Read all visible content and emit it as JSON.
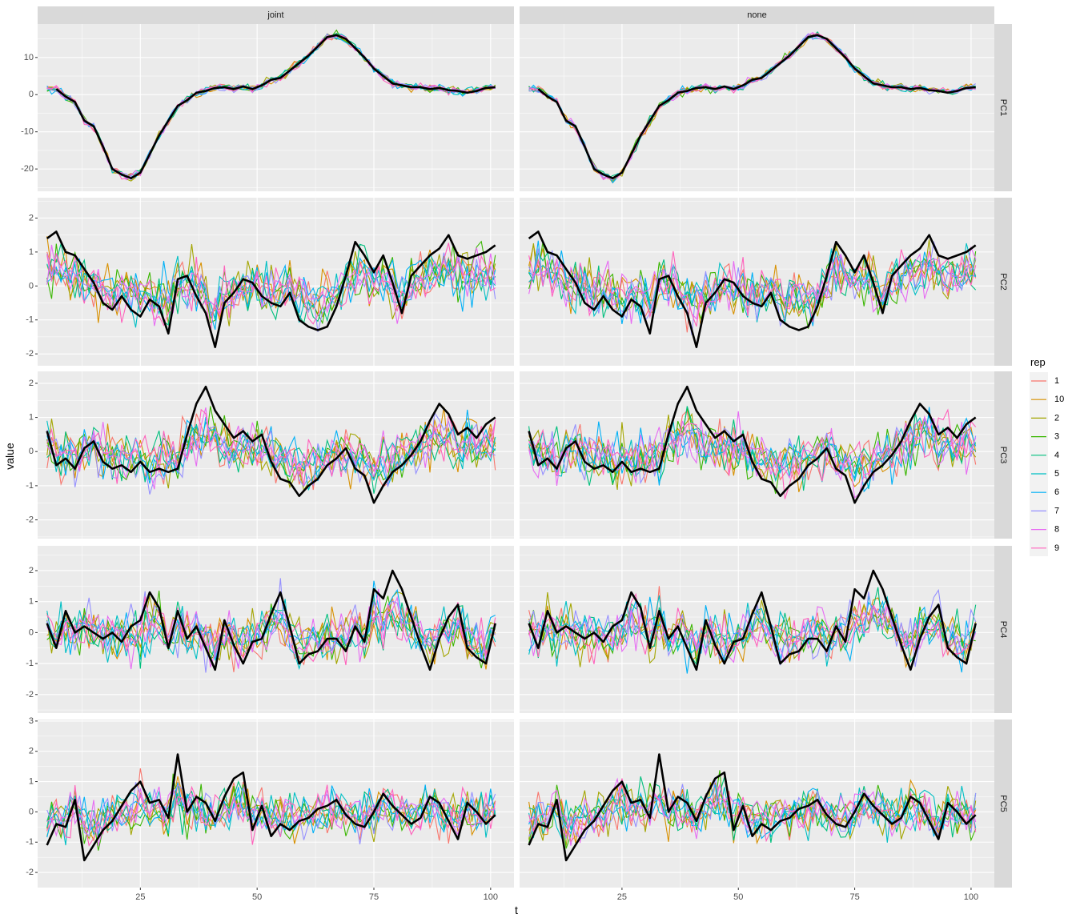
{
  "chart_data": {
    "type": "line",
    "facet_cols": [
      "joint",
      "none"
    ],
    "facet_rows": [
      "PC1",
      "PC2",
      "PC3",
      "PC4",
      "PC5"
    ],
    "xlabel": "t",
    "ylabel": "value",
    "xlim": [
      3,
      105
    ],
    "xticks": [
      25,
      50,
      75,
      100
    ],
    "rows": [
      {
        "name": "PC1",
        "ylim": [
          -26,
          19
        ],
        "yticks": [
          -20,
          -10,
          0,
          10
        ],
        "amp": 0.9,
        "truth": {
          "x": [
            7,
            9,
            11,
            13,
            15,
            17,
            19,
            21,
            23,
            25,
            27,
            29,
            31,
            33,
            35,
            37,
            39,
            41,
            43,
            45,
            47,
            49,
            51,
            53,
            55,
            57,
            59,
            61,
            63,
            65,
            67,
            69,
            71,
            73,
            75,
            77,
            79,
            81,
            83,
            85,
            87,
            89,
            91,
            93,
            95,
            97,
            99,
            101
          ],
          "y": [
            1.5,
            -0.5,
            -2,
            -7,
            -8.5,
            -14,
            -20,
            -21.5,
            -22.5,
            -21,
            -16,
            -11,
            -7,
            -3,
            -1.5,
            0.5,
            1,
            1.8,
            2,
            1.5,
            2.2,
            1.5,
            2.5,
            4,
            4.5,
            6.5,
            8.5,
            10.5,
            13,
            15.5,
            16,
            15,
            12.5,
            10,
            7,
            5,
            3,
            2.5,
            2,
            2,
            1.5,
            1.8,
            1.2,
            1,
            0.5,
            1,
            1.8,
            2
          ]
        }
      },
      {
        "name": "PC2",
        "ylim": [
          -2.35,
          2.6
        ],
        "yticks": [
          -2,
          -1,
          0,
          1,
          2
        ],
        "amp": 0.65,
        "truth": {
          "x": [
            5,
            7,
            9,
            11,
            13,
            15,
            17,
            19,
            21,
            23,
            25,
            27,
            29,
            31,
            33,
            35,
            37,
            39,
            41,
            43,
            45,
            47,
            49,
            51,
            53,
            55,
            57,
            59,
            61,
            63,
            65,
            67,
            69,
            71,
            73,
            75,
            77,
            79,
            81,
            83,
            85,
            87,
            89,
            91,
            93,
            95,
            97,
            99,
            101
          ],
          "y": [
            1.4,
            1.6,
            1.0,
            0.9,
            0.5,
            0.1,
            -0.5,
            -0.7,
            -0.3,
            -0.7,
            -0.9,
            -0.4,
            -0.6,
            -1.4,
            0.2,
            0.3,
            -0.3,
            -0.8,
            -1.8,
            -0.5,
            -0.2,
            0.2,
            0.1,
            -0.3,
            -0.5,
            -0.6,
            -0.2,
            -1.0,
            -1.2,
            -1.3,
            -1.2,
            -0.6,
            0.3,
            1.3,
            0.9,
            0.4,
            0.9,
            0.1,
            -0.8,
            0.3,
            0.6,
            0.9,
            1.1,
            1.5,
            0.9,
            0.8,
            0.9,
            1.0,
            1.2
          ]
        }
      },
      {
        "name": "PC3",
        "ylim": [
          -2.55,
          2.35
        ],
        "yticks": [
          -2,
          -1,
          0,
          1,
          2
        ],
        "amp": 0.65,
        "truth": {
          "x": [
            5,
            7,
            9,
            11,
            13,
            15,
            17,
            19,
            21,
            23,
            25,
            27,
            29,
            31,
            33,
            35,
            37,
            39,
            41,
            43,
            45,
            47,
            49,
            51,
            53,
            55,
            57,
            59,
            61,
            63,
            65,
            67,
            69,
            71,
            73,
            75,
            77,
            79,
            81,
            83,
            85,
            87,
            89,
            91,
            93,
            95,
            97,
            99,
            101
          ],
          "y": [
            0.6,
            -0.4,
            -0.2,
            -0.5,
            0.1,
            0.3,
            -0.3,
            -0.5,
            -0.4,
            -0.6,
            -0.3,
            -0.6,
            -0.5,
            -0.6,
            -0.5,
            0.5,
            1.4,
            1.9,
            1.2,
            0.8,
            0.4,
            0.6,
            0.3,
            0.5,
            -0.3,
            -0.8,
            -0.9,
            -1.3,
            -1.0,
            -0.8,
            -0.4,
            -0.2,
            0.1,
            -0.5,
            -0.7,
            -1.5,
            -1.0,
            -0.6,
            -0.4,
            -0.1,
            0.3,
            0.9,
            1.4,
            1.1,
            0.5,
            0.7,
            0.4,
            0.8,
            1.0
          ]
        }
      },
      {
        "name": "PC4",
        "ylim": [
          -2.6,
          2.8
        ],
        "yticks": [
          -2,
          -1,
          0,
          1,
          2
        ],
        "amp": 0.7,
        "truth": {
          "x": [
            5,
            7,
            9,
            11,
            13,
            15,
            17,
            19,
            21,
            23,
            25,
            27,
            29,
            31,
            33,
            35,
            37,
            39,
            41,
            43,
            45,
            47,
            49,
            51,
            53,
            55,
            57,
            59,
            61,
            63,
            65,
            67,
            69,
            71,
            73,
            75,
            77,
            79,
            81,
            83,
            85,
            87,
            89,
            91,
            93,
            95,
            97,
            99,
            101
          ],
          "y": [
            0.3,
            -0.5,
            0.7,
            0.0,
            0.2,
            0.0,
            -0.2,
            0.0,
            -0.3,
            0.2,
            0.4,
            1.3,
            0.8,
            -0.5,
            0.7,
            -0.2,
            0.2,
            -0.5,
            -1.2,
            0.4,
            -0.4,
            -1.0,
            -0.3,
            -0.2,
            0.6,
            1.3,
            0.2,
            -1.0,
            -0.7,
            -0.6,
            -0.2,
            -0.2,
            -0.6,
            0.2,
            -0.3,
            1.4,
            1.1,
            2.0,
            1.4,
            0.5,
            -0.4,
            -1.2,
            -0.2,
            0.5,
            0.9,
            -0.5,
            -0.8,
            -1.0,
            0.3
          ]
        }
      },
      {
        "name": "PC5",
        "ylim": [
          -2.5,
          3.05
        ],
        "yticks": [
          -2,
          -1,
          0,
          1,
          2,
          3
        ],
        "amp": 0.65,
        "truth": {
          "x": [
            5,
            7,
            9,
            11,
            13,
            15,
            17,
            19,
            21,
            23,
            25,
            27,
            29,
            31,
            33,
            35,
            37,
            39,
            41,
            43,
            45,
            47,
            49,
            51,
            53,
            55,
            57,
            59,
            61,
            63,
            65,
            67,
            69,
            71,
            73,
            75,
            77,
            79,
            81,
            83,
            85,
            87,
            89,
            91,
            93,
            95,
            97,
            99,
            101
          ],
          "y": [
            -1.1,
            -0.4,
            -0.5,
            0.4,
            -1.6,
            -1.1,
            -0.6,
            -0.3,
            0.2,
            0.7,
            1.0,
            0.3,
            0.4,
            -0.2,
            1.9,
            0.0,
            0.5,
            0.3,
            -0.3,
            0.5,
            1.1,
            1.3,
            -0.6,
            0.2,
            -0.8,
            -0.4,
            -0.6,
            -0.3,
            -0.2,
            0.1,
            0.2,
            0.4,
            -0.1,
            -0.4,
            -0.5,
            0.0,
            0.6,
            0.2,
            -0.1,
            -0.4,
            -0.2,
            0.5,
            0.3,
            -0.3,
            -0.9,
            0.3,
            0.0,
            -0.4,
            -0.1
          ]
        }
      }
    ],
    "legend": {
      "title": "rep",
      "position": "right",
      "entries": [
        {
          "label": "1",
          "color": "#F8766D"
        },
        {
          "label": "10",
          "color": "#D89000"
        },
        {
          "label": "2",
          "color": "#A3A500"
        },
        {
          "label": "3",
          "color": "#39B600"
        },
        {
          "label": "4",
          "color": "#00BF7D"
        },
        {
          "label": "5",
          "color": "#00BFC4"
        },
        {
          "label": "6",
          "color": "#00B0F6"
        },
        {
          "label": "7",
          "color": "#9590FF"
        },
        {
          "label": "8",
          "color": "#E76BF3"
        },
        {
          "label": "9",
          "color": "#FF62BC"
        }
      ]
    },
    "truth_color": "#000000",
    "panel_bg": "#EBEBEB",
    "strip_bg": "#D9D9D9",
    "grid": true
  }
}
